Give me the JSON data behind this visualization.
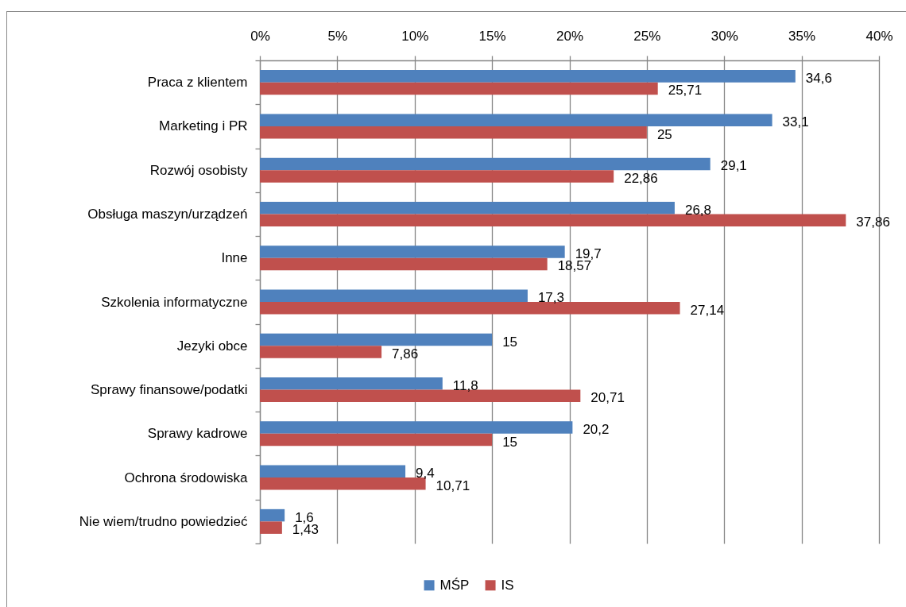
{
  "chart_data": {
    "type": "bar",
    "orientation": "horizontal",
    "categories": [
      "Praca z klientem",
      "Marketing i PR",
      "Rozwój osobisty",
      "Obsługa maszyn/urządzeń",
      "Inne",
      "Szkolenia informatyczne",
      "Jezyki obce",
      "Sprawy finansowe/podatki",
      "Sprawy kadrowe",
      "Ochrona środowiska",
      "Nie wiem/trudno powiedzieć"
    ],
    "series": [
      {
        "name": "MŚP",
        "color": "#4f81bd",
        "values": [
          34.6,
          33.1,
          29.1,
          26.8,
          19.7,
          17.3,
          15,
          11.8,
          20.2,
          9.4,
          1.6
        ],
        "value_labels": [
          "34,6",
          "33,1",
          "29,1",
          "26,8",
          "19,7",
          "17,3",
          "15",
          "11,8",
          "20,2",
          "9,4",
          "1,6"
        ]
      },
      {
        "name": "IS",
        "color": "#c0504d",
        "values": [
          25.71,
          25,
          22.86,
          37.86,
          18.57,
          27.14,
          7.86,
          20.71,
          15,
          10.71,
          1.43
        ],
        "value_labels": [
          "25,71",
          "25",
          "22,86",
          "37,86",
          "18,57",
          "27,14",
          "7,86",
          "20,71",
          "15",
          "10,71",
          "1,43"
        ]
      }
    ],
    "xlim": [
      0,
      40
    ],
    "xticks": [
      {
        "value": 0,
        "label": "0%"
      },
      {
        "value": 5,
        "label": "5%"
      },
      {
        "value": 10,
        "label": "10%"
      },
      {
        "value": 15,
        "label": "15%"
      },
      {
        "value": 20,
        "label": "20%"
      },
      {
        "value": 25,
        "label": "25%"
      },
      {
        "value": 30,
        "label": "30%"
      },
      {
        "value": 35,
        "label": "35%"
      },
      {
        "value": 40,
        "label": "40%"
      }
    ],
    "grid": "x",
    "legend": "bottom"
  }
}
